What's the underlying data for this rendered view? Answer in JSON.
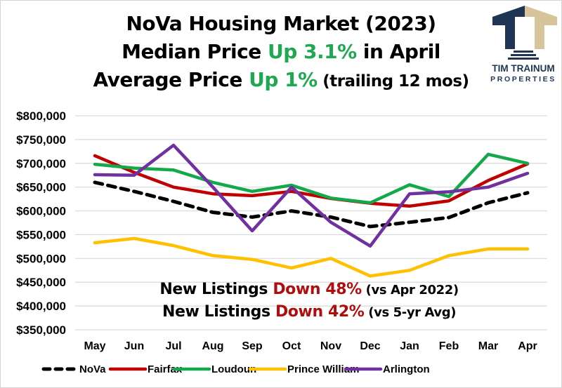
{
  "title": {
    "line1": "NoVa Housing Market (2023)",
    "line2_prefix": "Median Price ",
    "line2_highlight": "Up 3.1%",
    "line2_suffix": " in April",
    "line3_prefix": "Average Price ",
    "line3_highlight": "Up 1%",
    "line3_suffix": " (trailing 12 mos)"
  },
  "logo": {
    "icon": "tt-house-icon",
    "name": "TIM TRAINUM",
    "subtitle": "PROPERTIES",
    "colors": {
      "navy": "#1f3553",
      "tan": "#d8c49a"
    }
  },
  "annotations": [
    {
      "prefix": "New Listings ",
      "highlight": "Down 48%",
      "suffix": " (vs Apr 2022)"
    },
    {
      "prefix": "New Listings ",
      "highlight": "Down 42%",
      "suffix": " (vs 5-yr Avg)"
    }
  ],
  "colors": {
    "highlight_up": "#1fa84f",
    "highlight_down": "#b00d0d"
  },
  "chart_data": {
    "type": "line",
    "title": "NoVa Housing Market (2023)",
    "xlabel": "",
    "ylabel": "",
    "categories": [
      "May",
      "Jun",
      "Jul",
      "Aug",
      "Sep",
      "Oct",
      "Nov",
      "Dec",
      "Jan",
      "Feb",
      "Mar",
      "Apr"
    ],
    "ylim": [
      350000,
      800000
    ],
    "yticks": [
      800000,
      750000,
      700000,
      650000,
      600000,
      550000,
      500000,
      450000,
      400000,
      350000
    ],
    "ytick_labels": [
      "$800,000",
      "$750,000",
      "$700,000",
      "$650,000",
      "$600,000",
      "$550,000",
      "$500,000",
      "$450,000",
      "$400,000",
      "$350,000"
    ],
    "grid": true,
    "legend_position": "bottom",
    "series": [
      {
        "name": "NoVa",
        "color": "#000000",
        "dashed": true,
        "values": [
          660000,
          641000,
          620000,
          597000,
          587000,
          600000,
          587000,
          567000,
          576000,
          586000,
          617000,
          638000
        ]
      },
      {
        "name": "Fairfax",
        "color": "#c00000",
        "dashed": false,
        "values": [
          716000,
          681000,
          650000,
          636000,
          632000,
          641000,
          626000,
          616000,
          610000,
          621000,
          664000,
          699000
        ]
      },
      {
        "name": "Loudoun",
        "color": "#13a84a",
        "dashed": false,
        "values": [
          698000,
          690000,
          686000,
          660000,
          641000,
          654000,
          627000,
          617000,
          655000,
          630000,
          719000,
          700000
        ]
      },
      {
        "name": "Prince William",
        "color": "#ffc000",
        "dashed": false,
        "values": [
          533000,
          542000,
          527000,
          506000,
          498000,
          480000,
          500000,
          463000,
          475000,
          506000,
          520000,
          520000
        ]
      },
      {
        "name": "Arlington",
        "color": "#7030a0",
        "dashed": false,
        "values": [
          676000,
          675000,
          738000,
          650000,
          558000,
          650000,
          576000,
          526000,
          636000,
          640000,
          650000,
          679000
        ]
      }
    ]
  }
}
